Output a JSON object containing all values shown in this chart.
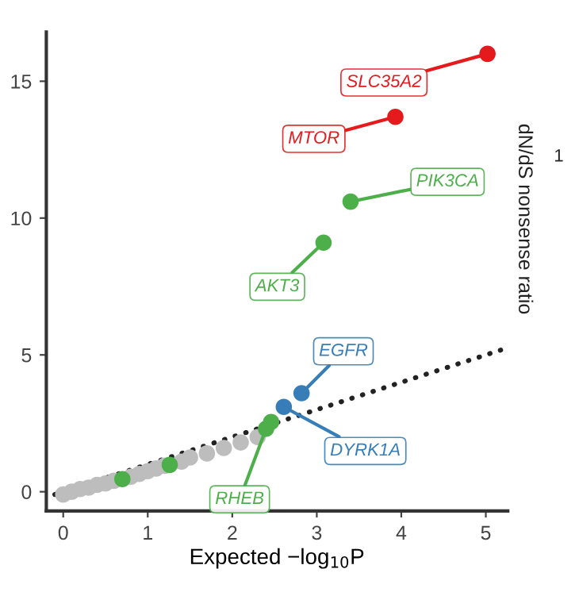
{
  "chart_data": {
    "type": "scatter",
    "xlabel": "Expected −log$_{10}$P",
    "xlim": [
      -0.2,
      5.26
    ],
    "ylim": [
      -0.7,
      16.8
    ],
    "xticks": [
      0,
      1,
      2,
      3,
      4,
      5
    ],
    "yticks": [
      0,
      5,
      10,
      15
    ],
    "grid": false,
    "marker": "circle",
    "series": [
      {
        "color": "#bdbdbd",
        "x": [
          0,
          0.1,
          0.2,
          0.3,
          0.4,
          0.5,
          0.6,
          0.8,
          0.9,
          1.0,
          1.1,
          1.2,
          1.4,
          1.5,
          1.7,
          1.9,
          2.1,
          2.3
        ],
        "values": [
          -0.1,
          0,
          0.1,
          0.15,
          0.25,
          0.3,
          0.4,
          0.55,
          0.65,
          0.75,
          0.85,
          0.95,
          1.1,
          1.25,
          1.4,
          1.6,
          1.8,
          2.0
        ]
      },
      {
        "type": "line",
        "color": "#222222",
        "line_style": "dotted",
        "marker": "none",
        "x": [
          -0.1,
          5.2
        ],
        "values": [
          -0.1,
          5.2
        ]
      },
      {
        "color": "#4daf4a",
        "x": [
          0.7,
          1.26,
          2.4,
          2.46,
          3.08,
          3.4
        ],
        "values": [
          0.46,
          0.98,
          2.3,
          2.55,
          9.1,
          10.6
        ]
      },
      {
        "color": "#377eb8",
        "x": [
          2.61,
          2.82
        ],
        "values": [
          3.1,
          3.6
        ]
      },
      {
        "color": "#e41a1c",
        "x": [
          3.93,
          5.02
        ],
        "values": [
          13.7,
          16.0
        ]
      }
    ],
    "annotations": [
      {
        "text": "SLC35A2",
        "x": 5.02,
        "y": 16.0
      },
      {
        "text": "MTOR",
        "x": 3.93,
        "y": 13.7
      },
      {
        "text": "PIK3CA",
        "x": 3.4,
        "y": 10.6
      },
      {
        "text": "AKT3",
        "x": 3.08,
        "y": 9.1
      },
      {
        "text": "EGFR",
        "x": 2.82,
        "y": 3.6
      },
      {
        "text": "DYRK1A",
        "x": 2.61,
        "y": 3.1
      },
      {
        "text": "RHEB",
        "x": 2.4,
        "y": 2.3
      },
      "dN/dS nonsense ratio",
      "1"
    ]
  }
}
